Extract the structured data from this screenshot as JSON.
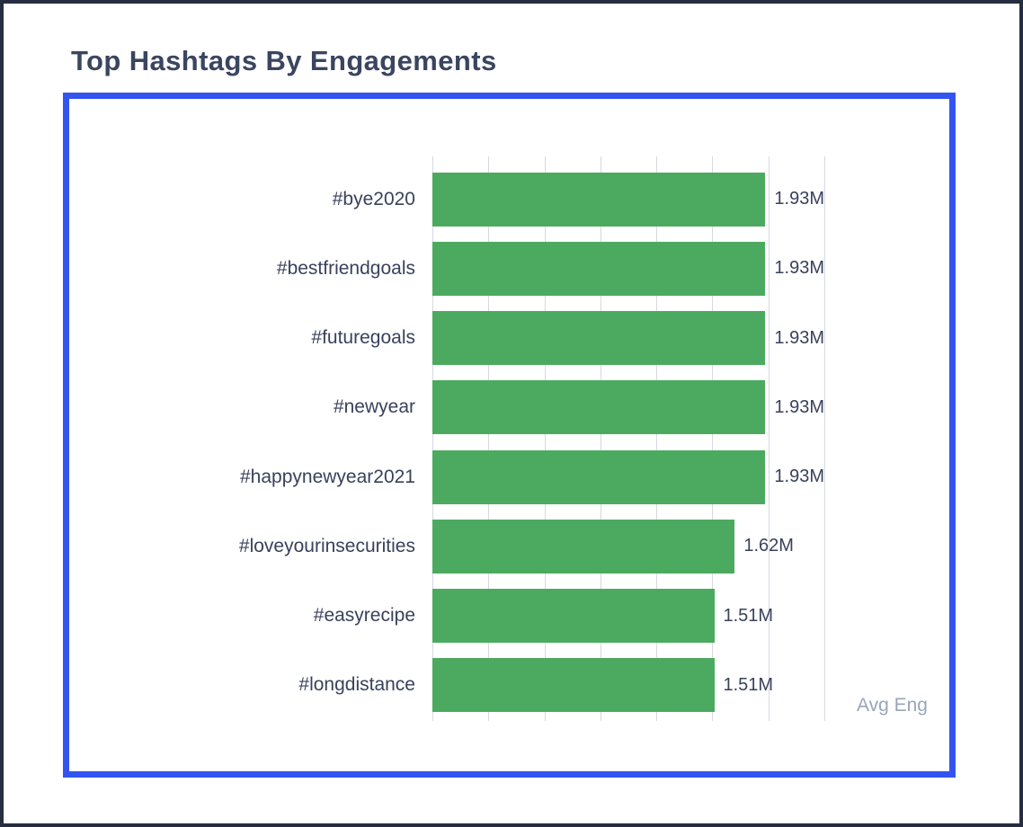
{
  "header": {
    "title": "Top Hashtags By Engagements"
  },
  "chart_data": {
    "type": "bar",
    "orientation": "horizontal",
    "title": "Top Hashtags By Engagements",
    "categories": [
      "#bye2020",
      "#bestfriendgoals",
      "#futuregoals",
      "#newyear",
      "#happynewyear2021",
      "#loveyourinsecurities",
      "#easyrecipe",
      "#longdistance"
    ],
    "values": [
      1.93,
      1.93,
      1.93,
      1.93,
      1.93,
      1.62,
      1.51,
      1.51
    ],
    "value_labels": [
      "1.93M",
      "1.93M",
      "1.93M",
      "1.93M",
      "1.93M",
      "1.62M",
      "1.51M",
      "1.51M"
    ],
    "unit": "M",
    "xlabel": "Avg Eng",
    "ylabel": "",
    "xlim": [
      0,
      2.1
    ],
    "gridline_count": 8,
    "grid": "vertical",
    "legend": "none",
    "bar_color": "#4caa60"
  },
  "colors": {
    "bar": "#4caa60",
    "card_border": "#3354f1",
    "outer_border": "#272e41",
    "title_text": "#3a4560",
    "label_text": "#39415c",
    "axis_label_text": "#9aa5bc",
    "gridline": "#d6d9df",
    "background": "#ffffff"
  }
}
